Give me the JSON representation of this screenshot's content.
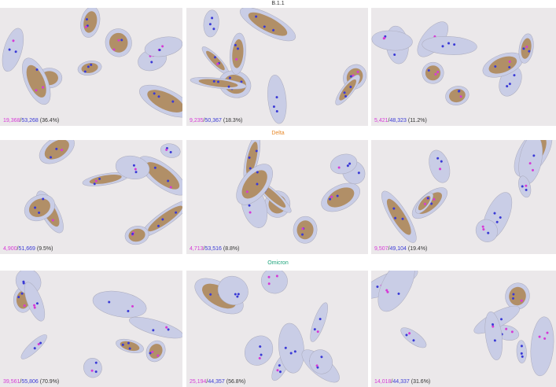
{
  "colors": {
    "positive": "#d63ad6",
    "total": "#3a3ad6",
    "b111": "#333333",
    "delta": "#e8892a",
    "omicron": "#1aa37a",
    "tissue": "#c9cde6",
    "stain": "#a87a3c"
  },
  "rows": [
    {
      "title": "B.1.1",
      "panels": [
        {
          "positive": "19,368",
          "total": "53,268",
          "percent": "(36.4%)",
          "stain": 0.7
        },
        {
          "positive": "9,235",
          "total": "50,367",
          "percent": "(18.3%)",
          "stain": 0.5
        },
        {
          "positive": "5,421",
          "total": "48,323",
          "percent": "(11.2%)",
          "stain": 0.45
        }
      ]
    },
    {
      "title": "Delta",
      "panels": [
        {
          "positive": "4,900",
          "total": "51,669",
          "percent": "(9.5%)",
          "stain": 0.6
        },
        {
          "positive": "4,713",
          "total": "53,516",
          "percent": "(8.8%)",
          "stain": 0.55
        },
        {
          "positive": "9,507",
          "total": "49,104",
          "percent": "(19.4%)",
          "stain": 0.5
        }
      ]
    },
    {
      "title": "Omicron",
      "panels": [
        {
          "positive": "39,561",
          "total": "55,806",
          "percent": "(70.9%)",
          "stain": 0.6
        },
        {
          "positive": "25,194",
          "total": "44,357",
          "percent": "(56.8%)",
          "stain": 0.05
        },
        {
          "positive": "14,018",
          "total": "44,337",
          "percent": "(31.6%)",
          "stain": 0.1
        }
      ]
    }
  ]
}
